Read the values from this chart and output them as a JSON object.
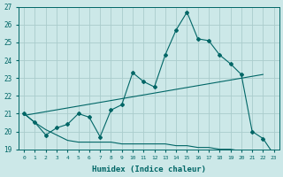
{
  "xlabel": "Humidex (Indice chaleur)",
  "xlim": [
    -0.5,
    23.5
  ],
  "ylim": [
    19,
    27
  ],
  "yticks": [
    19,
    20,
    21,
    22,
    23,
    24,
    25,
    26,
    27
  ],
  "xticks": [
    0,
    1,
    2,
    3,
    4,
    5,
    6,
    7,
    8,
    9,
    10,
    11,
    12,
    13,
    14,
    15,
    16,
    17,
    18,
    19,
    20,
    21,
    22,
    23
  ],
  "bg_color": "#cce8e8",
  "grid_color": "#aacccc",
  "line_color": "#006666",
  "main_line_x": [
    0,
    1,
    2,
    3,
    4,
    5,
    6,
    7,
    8,
    9,
    10,
    11,
    12,
    13,
    14,
    15,
    16,
    17,
    18,
    19,
    20,
    21,
    22,
    23
  ],
  "main_line_y": [
    21.0,
    20.5,
    19.8,
    20.2,
    20.4,
    21.0,
    20.8,
    19.7,
    21.2,
    21.5,
    23.3,
    22.8,
    22.5,
    24.3,
    25.7,
    26.7,
    25.2,
    25.1,
    24.3,
    23.8,
    23.2,
    20.0,
    19.6,
    18.7
  ],
  "line2_x": [
    0,
    22
  ],
  "line2_y": [
    20.9,
    23.2
  ],
  "line3_x": [
    0,
    1,
    2,
    3,
    4,
    5,
    6,
    7,
    8,
    9,
    10,
    11,
    12,
    13,
    14,
    15,
    16,
    17,
    18,
    19,
    20,
    21,
    22,
    23
  ],
  "line3_y": [
    21.0,
    20.5,
    20.1,
    19.8,
    19.5,
    19.4,
    19.4,
    19.4,
    19.4,
    19.3,
    19.3,
    19.3,
    19.3,
    19.3,
    19.2,
    19.2,
    19.1,
    19.1,
    19.0,
    19.0,
    18.9,
    18.85,
    18.8,
    18.65
  ]
}
